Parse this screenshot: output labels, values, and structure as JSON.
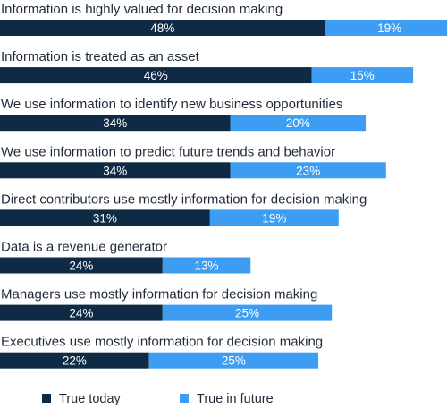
{
  "chart_data": {
    "type": "bar",
    "orientation": "horizontal",
    "stacked": true,
    "categories": [
      "Information is highly valued for decision making",
      "Information is treated as an asset",
      "We use information to identify new business opportunities",
      "We use information to predict future trends and behavior",
      "Direct contributors use mostly information for decision making",
      "Data is a revenue generator",
      "Managers use mostly information for decision making",
      "Executives use mostly information for decision making"
    ],
    "series": [
      {
        "name": "True today",
        "color": "#0f2a45",
        "values": [
          48,
          46,
          34,
          34,
          31,
          24,
          24,
          22
        ]
      },
      {
        "name": "True in future",
        "color": "#3d9df2",
        "values": [
          19,
          15,
          20,
          23,
          19,
          13,
          25,
          25
        ]
      }
    ],
    "value_suffix": "%",
    "xlim": [
      0,
      66
    ],
    "grid": false,
    "legend": "bottom"
  }
}
